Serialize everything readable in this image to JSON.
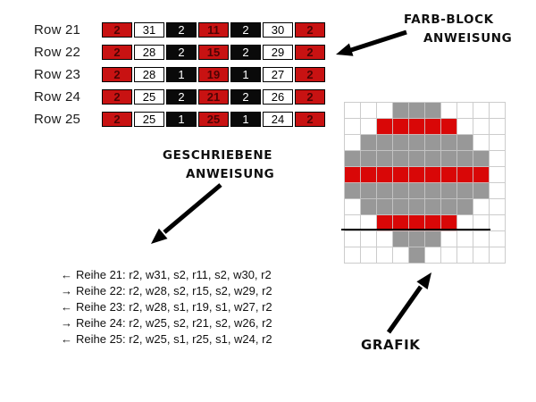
{
  "labels": {
    "farb_block_line1": "FARB-BLOCK",
    "farb_block_line2": "ANWEISUNG",
    "geschriebene_line1": "GESCHRIEBENE",
    "geschriebene_line2": "ANWEISUNG",
    "grafik": "GRAFIK"
  },
  "color_block_table": {
    "rows": [
      {
        "label": "Row 21",
        "cells": [
          {
            "color": "red",
            "value": "2"
          },
          {
            "color": "white",
            "value": "31"
          },
          {
            "color": "black",
            "value": "2"
          },
          {
            "color": "red",
            "value": "11"
          },
          {
            "color": "black",
            "value": "2"
          },
          {
            "color": "white",
            "value": "30"
          },
          {
            "color": "red",
            "value": "2"
          }
        ]
      },
      {
        "label": "Row 22",
        "cells": [
          {
            "color": "red",
            "value": "2"
          },
          {
            "color": "white",
            "value": "28"
          },
          {
            "color": "black",
            "value": "2"
          },
          {
            "color": "red",
            "value": "15"
          },
          {
            "color": "black",
            "value": "2"
          },
          {
            "color": "white",
            "value": "29"
          },
          {
            "color": "red",
            "value": "2"
          }
        ]
      },
      {
        "label": "Row 23",
        "cells": [
          {
            "color": "red",
            "value": "2"
          },
          {
            "color": "white",
            "value": "28"
          },
          {
            "color": "black",
            "value": "1"
          },
          {
            "color": "red",
            "value": "19"
          },
          {
            "color": "black",
            "value": "1"
          },
          {
            "color": "white",
            "value": "27"
          },
          {
            "color": "red",
            "value": "2"
          }
        ]
      },
      {
        "label": "Row 24",
        "cells": [
          {
            "color": "red",
            "value": "2"
          },
          {
            "color": "white",
            "value": "25"
          },
          {
            "color": "black",
            "value": "2"
          },
          {
            "color": "red",
            "value": "21"
          },
          {
            "color": "black",
            "value": "2"
          },
          {
            "color": "white",
            "value": "26"
          },
          {
            "color": "red",
            "value": "2"
          }
        ]
      },
      {
        "label": "Row 25",
        "cells": [
          {
            "color": "red",
            "value": "2"
          },
          {
            "color": "white",
            "value": "25"
          },
          {
            "color": "black",
            "value": "1"
          },
          {
            "color": "red",
            "value": "25"
          },
          {
            "color": "black",
            "value": "1"
          },
          {
            "color": "white",
            "value": "24"
          },
          {
            "color": "red",
            "value": "2"
          }
        ]
      }
    ]
  },
  "written_instructions": [
    {
      "direction": "←",
      "text": "Reihe 21: r2, w31, s2, r11, s2, w30, r2"
    },
    {
      "direction": "→",
      "text": "Reihe 22: r2, w28, s2, r15, s2, w29, r2"
    },
    {
      "direction": "←",
      "text": "Reihe 23: r2, w28, s1, r19, s1, w27, r2"
    },
    {
      "direction": "→",
      "text": "Reihe 24: r2, w25, s2, r21, s2, w26, r2"
    },
    {
      "direction": "←",
      "text": "Reihe 25: r2, w25, s1, r25, s1, w24, r2"
    }
  ],
  "grafik_grid": {
    "columns": 10,
    "rows": 10,
    "legend": {
      ".": "empty",
      "G": "gray stitch",
      "R": "red stitch"
    },
    "pattern": [
      "...GGG....",
      "..RRRRR...",
      ".GGGGGGG..",
      "GGGGGGGGG.",
      "RRRRRRRRR.",
      "GGGGGGGGG.",
      ".GGGGGGG..",
      "..RRRRR...",
      "...GGG....",
      "....G....."
    ],
    "baseline_after_row": 8
  },
  "colors": {
    "table_red": "#c81212",
    "table_red_text": "#4d0404",
    "table_black": "#0a0a0a",
    "grid_red": "#d90707",
    "grid_gray": "#989898",
    "grid_line": "#cccccc",
    "baseline_black": "#000000"
  }
}
